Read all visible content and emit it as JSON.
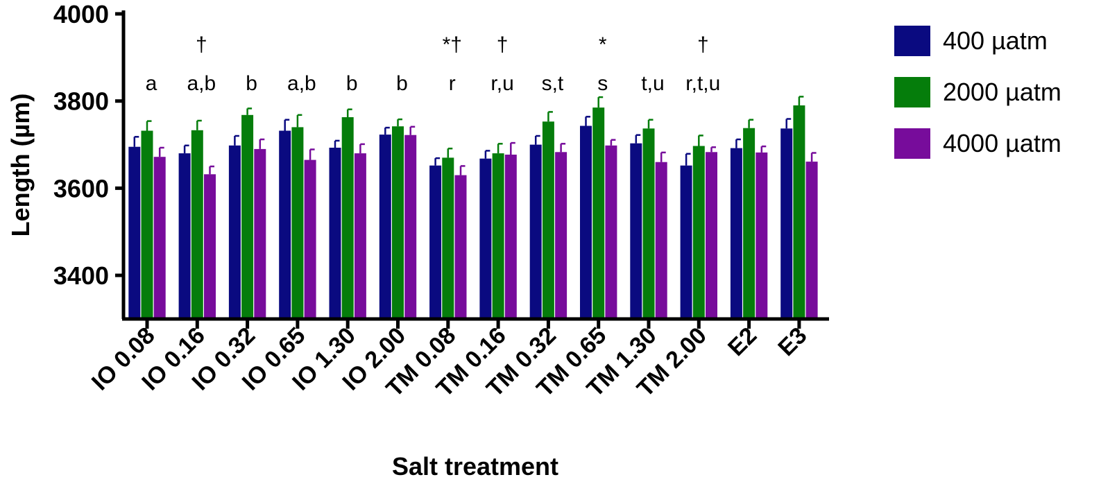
{
  "chart_data": {
    "type": "bar",
    "title": "",
    "xlabel": "Salt treatment",
    "ylabel": "Length (µm)",
    "ylim": [
      3300,
      4000
    ],
    "yticks": [
      3400,
      3600,
      3800,
      4000
    ],
    "grid": false,
    "legend_position": "top-right",
    "categories": [
      "IO 0.08",
      "IO 0.16",
      "IO 0.32",
      "IO 0.65",
      "IO 1.30",
      "IO 2.00",
      "TM 0.08",
      "TM 0.16",
      "TM 0.32",
      "TM 0.65",
      "TM 1.30",
      "TM 2.00",
      "E2",
      "E3"
    ],
    "series": [
      {
        "name": "400 µatm",
        "color": "#0a0a80",
        "values": [
          3695,
          3680,
          3698,
          3732,
          3693,
          3723,
          3652,
          3668,
          3700,
          3743,
          3703,
          3652,
          3692,
          3737
        ],
        "errors": [
          23,
          18,
          22,
          25,
          16,
          16,
          17,
          18,
          20,
          21,
          19,
          27,
          20,
          22
        ]
      },
      {
        "name": "2000 µatm",
        "color": "#057d0b",
        "values": [
          3732,
          3733,
          3768,
          3740,
          3763,
          3742,
          3670,
          3680,
          3753,
          3785,
          3737,
          3697,
          3738,
          3790
        ],
        "errors": [
          22,
          22,
          15,
          28,
          18,
          16,
          21,
          22,
          22,
          24,
          20,
          24,
          19,
          20
        ]
      },
      {
        "name": "4000 µatm",
        "color": "#770c9b",
        "values": [
          3672,
          3632,
          3690,
          3665,
          3680,
          3722,
          3630,
          3677,
          3683,
          3698,
          3660,
          3683,
          3682,
          3661
        ],
        "errors": [
          21,
          18,
          22,
          24,
          21,
          19,
          21,
          27,
          19,
          13,
          22,
          11,
          14,
          20
        ]
      }
    ],
    "annotations": {
      "letters": [
        "a",
        "a,b",
        "b",
        "a,b",
        "b",
        "b",
        "r",
        "r,u",
        "s,t",
        "s",
        "t,u",
        "r,t,u",
        "",
        ""
      ],
      "symbols": [
        "",
        "†",
        "",
        "",
        "",
        "",
        "*†",
        "†",
        "",
        "*",
        "",
        "†",
        "",
        ""
      ]
    }
  }
}
